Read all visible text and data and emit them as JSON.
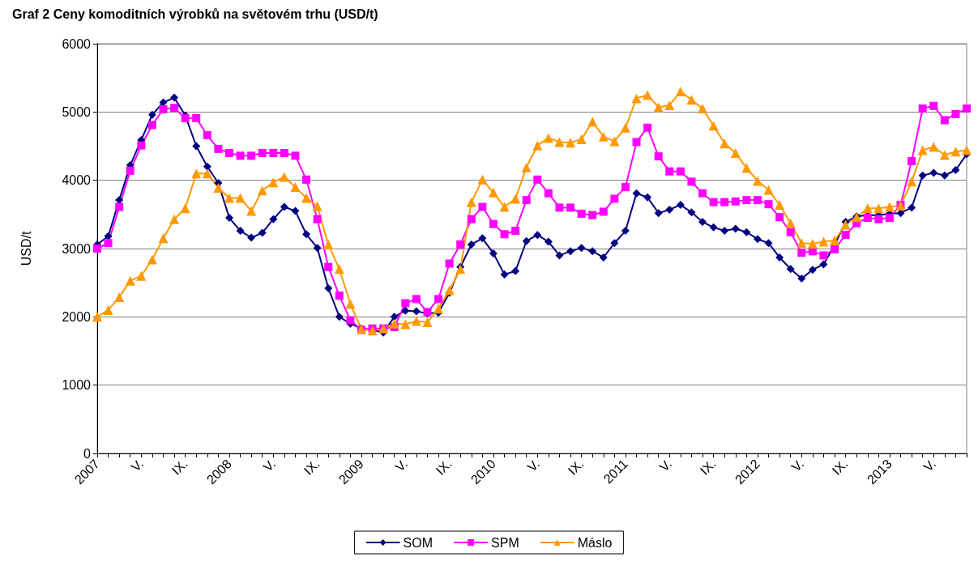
{
  "chart_data": {
    "type": "line",
    "title": "Graf 2 Ceny komoditních výrobků na světovém trhu (USD/t)",
    "ylabel": "USD/t",
    "categories": [
      "2007",
      null,
      null,
      null,
      "V.",
      null,
      null,
      null,
      "IX.",
      null,
      null,
      null,
      "2008",
      null,
      null,
      null,
      "V.",
      null,
      null,
      null,
      "IX.",
      null,
      null,
      null,
      "2009",
      null,
      null,
      null,
      "V.",
      null,
      null,
      null,
      "IX.",
      null,
      null,
      null,
      "2010",
      null,
      null,
      null,
      "V.",
      null,
      null,
      null,
      "IX.",
      null,
      null,
      null,
      "2011",
      null,
      null,
      null,
      "V.",
      null,
      null,
      null,
      "IX.",
      null,
      null,
      null,
      "2012",
      null,
      null,
      null,
      "V.",
      null,
      null,
      null,
      "IX.",
      null,
      null,
      null,
      "2013",
      null,
      null,
      null,
      "V.",
      null,
      null,
      null
    ],
    "series": [
      {
        "name": "SOM",
        "color": "#000080",
        "marker": "diamond",
        "values": [
          3060,
          3180,
          3710,
          4220,
          4590,
          4960,
          5140,
          5210,
          4950,
          4500,
          4200,
          3960,
          3450,
          3260,
          3160,
          3230,
          3430,
          3610,
          3550,
          3210,
          3010,
          2420,
          2000,
          1900,
          1830,
          1810,
          1770,
          2000,
          2090,
          2080,
          2050,
          2060,
          2350,
          2730,
          3060,
          3150,
          2930,
          2620,
          2670,
          3110,
          3200,
          3100,
          2900,
          2960,
          3010,
          2960,
          2870,
          3080,
          3260,
          3810,
          3750,
          3520,
          3570,
          3640,
          3530,
          3390,
          3310,
          3260,
          3290,
          3240,
          3140,
          3080,
          2870,
          2700,
          2560,
          2690,
          2770,
          3050,
          3390,
          3470,
          3490,
          3490,
          3510,
          3520,
          3600,
          4070,
          4110,
          4070,
          4150,
          4380
        ]
      },
      {
        "name": "SPM",
        "color": "#ff00ff",
        "marker": "square",
        "values": [
          3000,
          3080,
          3610,
          4140,
          4510,
          4810,
          5040,
          5060,
          4910,
          4910,
          4660,
          4460,
          4400,
          4360,
          4360,
          4400,
          4400,
          4400,
          4360,
          4010,
          3430,
          2730,
          2310,
          1950,
          1810,
          1830,
          1830,
          1850,
          2200,
          2260,
          2070,
          2260,
          2780,
          3060,
          3430,
          3610,
          3360,
          3210,
          3260,
          3710,
          4010,
          3810,
          3600,
          3600,
          3510,
          3490,
          3540,
          3730,
          3900,
          4560,
          4770,
          4350,
          4130,
          4130,
          3980,
          3810,
          3680,
          3680,
          3690,
          3710,
          3710,
          3650,
          3460,
          3240,
          2940,
          2960,
          2900,
          2990,
          3200,
          3370,
          3450,
          3430,
          3450,
          3640,
          4280,
          5050,
          5090,
          4880,
          4970,
          5050
        ]
      },
      {
        "name": "Máslo",
        "color": "#ff9900",
        "marker": "triangle",
        "values": [
          2000,
          2100,
          2290,
          2530,
          2600,
          2840,
          3150,
          3430,
          3590,
          4100,
          4100,
          3890,
          3740,
          3740,
          3550,
          3850,
          3970,
          4050,
          3900,
          3740,
          3620,
          3060,
          2700,
          2190,
          1820,
          1800,
          1830,
          1900,
          1890,
          1940,
          1920,
          2120,
          2390,
          2700,
          3680,
          4010,
          3820,
          3610,
          3730,
          4190,
          4510,
          4620,
          4560,
          4550,
          4600,
          4860,
          4640,
          4570,
          4770,
          5200,
          5250,
          5070,
          5100,
          5300,
          5180,
          5050,
          4800,
          4540,
          4400,
          4180,
          3990,
          3860,
          3640,
          3370,
          3080,
          3070,
          3100,
          3120,
          3350,
          3460,
          3590,
          3590,
          3610,
          3630,
          3980,
          4440,
          4490,
          4370,
          4420,
          4440
        ]
      }
    ],
    "ylim": [
      0,
      6000
    ],
    "yticks": [
      0,
      1000,
      2000,
      3000,
      4000,
      5000,
      6000
    ],
    "grid": "y",
    "legend": "bottom",
    "line_style": "solid"
  }
}
